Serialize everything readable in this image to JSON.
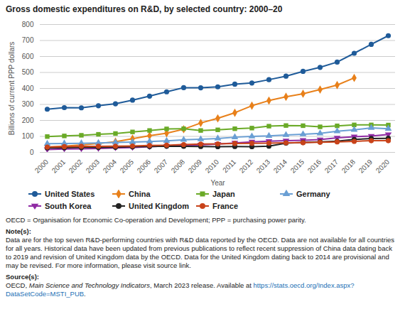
{
  "chart_data": {
    "type": "line",
    "title": "Gross domestic expenditures on R&D, by selected country: 2000–20",
    "x_label": "Year",
    "y_label": "Billions of current PPP dollars",
    "x": [
      2000,
      2001,
      2002,
      2003,
      2004,
      2005,
      2006,
      2007,
      2008,
      2009,
      2010,
      2011,
      2012,
      2013,
      2014,
      2015,
      2016,
      2017,
      2018,
      2019,
      2020
    ],
    "ylim": [
      0,
      800
    ],
    "yticks": [
      0,
      100,
      200,
      300,
      400,
      500,
      600,
      700,
      800
    ],
    "grid": true,
    "legend": "bottom",
    "series": [
      {
        "name": "United States",
        "color": "#1f5b99",
        "marker": "circle",
        "values": [
          270,
          280,
          279,
          292,
          304,
          327,
          352,
          379,
          405,
          404,
          410,
          427,
          434,
          455,
          477,
          507,
          532,
          565,
          620,
          676,
          730
        ]
      },
      {
        "name": "China",
        "color": "#e8801a",
        "marker": "diamond",
        "values": [
          33,
          39,
          47,
          55,
          67,
          86,
          104,
          120,
          145,
          184,
          213,
          248,
          292,
          324,
          348,
          367,
          393,
          421,
          466,
          null,
          null
        ]
      },
      {
        "name": "Japan",
        "color": "#6aaa27",
        "marker": "square",
        "values": [
          99,
          103,
          107,
          113,
          118,
          128,
          137,
          147,
          148,
          137,
          141,
          148,
          152,
          164,
          168,
          167,
          160,
          166,
          172,
          172,
          171
        ]
      },
      {
        "name": "Germany",
        "color": "#6a9fd4",
        "marker": "triangle",
        "values": [
          54,
          56,
          57,
          59,
          62,
          64,
          68,
          72,
          79,
          82,
          87,
          95,
          100,
          103,
          109,
          113,
          119,
          132,
          141,
          153,
          148
        ]
      },
      {
        "name": "South Korea",
        "color": "#8f2aa3",
        "marker": "triangle-down",
        "values": [
          18,
          21,
          22,
          24,
          28,
          30,
          35,
          40,
          43,
          47,
          52,
          59,
          66,
          70,
          73,
          76,
          80,
          91,
          98,
          102,
          112
        ]
      },
      {
        "name": "United Kingdom",
        "color": "#222222",
        "marker": "circle",
        "values": [
          28,
          29,
          31,
          31,
          32,
          35,
          37,
          39,
          38,
          37,
          36,
          37,
          36,
          39,
          58,
          62,
          66,
          70,
          81,
          87,
          88
        ]
      },
      {
        "name": "France",
        "color": "#c8431a",
        "marker": "circle",
        "values": [
          33,
          36,
          38,
          38,
          39,
          40,
          43,
          45,
          49,
          52,
          53,
          56,
          57,
          58,
          60,
          61,
          63,
          66,
          69,
          73,
          73
        ]
      }
    ],
    "abbreviations": "OECD = Organisation for Economic Co-operation and Development; PPP = purchasing power parity.",
    "note_heading": "Note(s):",
    "note": "Data are for the top seven R&D-performing countries with R&D data reported by the OECD. Data are not available for all countries for all years. Historical data have been updated from previous publications to reflect recent suppression of China data dating back to 2019 and revision of United Kingdom data by the OECD. Data for the United Kingdom dating back to 2014 are provisional and may be revised. For more information, please visit source link.",
    "source_heading": "Source(s):",
    "source": [
      "OECD, ",
      "Main Science and Technology Indicators",
      ", March 2023 release. Available at ",
      "https://stats.oecd.org/Index.aspx?DataSetCode=MSTI_PUB",
      "."
    ]
  }
}
